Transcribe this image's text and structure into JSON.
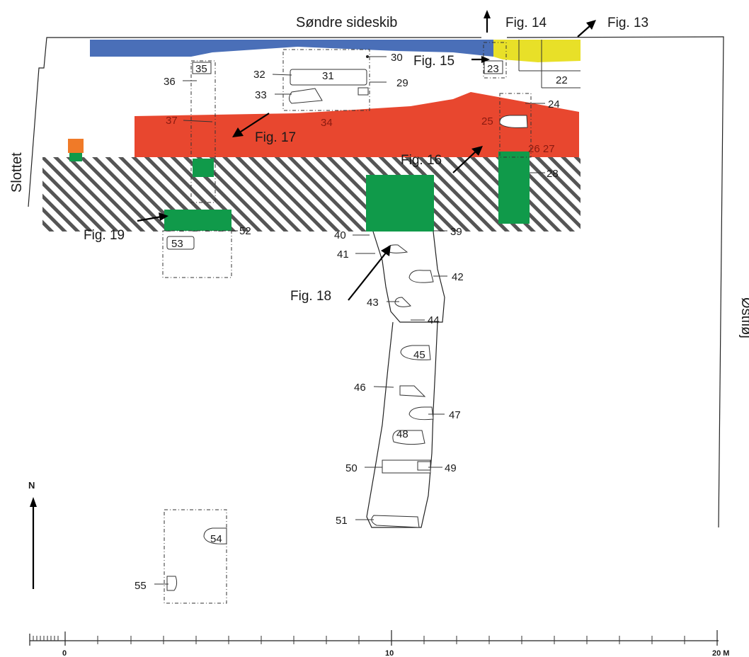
{
  "labels": {
    "north_aisle": "Søndre sideskib",
    "west": "Slottet",
    "east": "Østfløj",
    "north": "N"
  },
  "figures": {
    "f13": "Fig. 13",
    "f14": "Fig. 14",
    "f15": "Fig. 15",
    "f16": "Fig. 16",
    "f17": "Fig. 17",
    "f18": "Fig. 18",
    "f19": "Fig. 19"
  },
  "graves": {
    "g22": "22",
    "g23": "23",
    "g24": "24",
    "g25": "25",
    "g2627": "26 27",
    "g28": "28",
    "g29": "29",
    "g30": "30",
    "g31": "31",
    "g32": "32",
    "g33": "33",
    "g34": "34",
    "g35": "35",
    "g36": "36",
    "g37": "37",
    "g39": "39",
    "g40": "40",
    "g41": "41",
    "g42": "42",
    "g43": "43",
    "g44": "44",
    "g45": "45",
    "g46": "46",
    "g47": "47",
    "g48": "48",
    "g49": "49",
    "g50": "50",
    "g51": "51",
    "g52": "52",
    "g53": "53",
    "g54": "54",
    "g55": "55"
  },
  "scale": {
    "zero": "0",
    "mid": "10",
    "end": "20 M"
  },
  "colors": {
    "blue": "#4a6fb8",
    "yellow": "#e8e028",
    "red": "#e8472f",
    "green": "#109a4a",
    "orange": "#f07a28",
    "hatch": "#555555"
  }
}
